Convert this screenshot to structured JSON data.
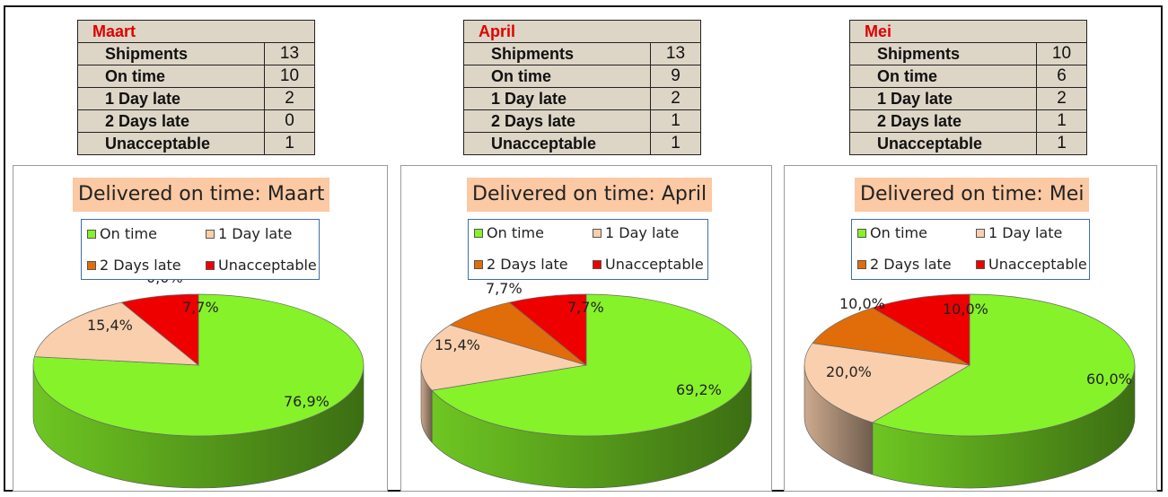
{
  "colors": {
    "on_time": "#86f22a",
    "day1_late": "#f9cfad",
    "days2_late": "#e06d0a",
    "unacceptable": "#ee0000",
    "table_bg": "#ddd5c6",
    "title_bg": "#fbc9a3",
    "month_title": "#e00000"
  },
  "legend": [
    "On time",
    "1 Day late",
    "2 Days late",
    "Unacceptable"
  ],
  "months": [
    {
      "name": "Maart",
      "rows": [
        {
          "label": "Shipments",
          "value": "13"
        },
        {
          "label": "On time",
          "value": "10"
        },
        {
          "label": "1 Day late",
          "value": "2"
        },
        {
          "label": "2 Days late",
          "value": "0"
        },
        {
          "label": "Unacceptable",
          "value": "1"
        }
      ],
      "chart_title": "Delivered on time: Maart"
    },
    {
      "name": "April",
      "rows": [
        {
          "label": "Shipments",
          "value": "13"
        },
        {
          "label": "On time",
          "value": "9"
        },
        {
          "label": "1 Day late",
          "value": "2"
        },
        {
          "label": "2 Days late",
          "value": "1"
        },
        {
          "label": "Unacceptable",
          "value": "1"
        }
      ],
      "chart_title": "Delivered on time: April"
    },
    {
      "name": "Mei",
      "rows": [
        {
          "label": "Shipments",
          "value": "10"
        },
        {
          "label": "On time",
          "value": "6"
        },
        {
          "label": "1 Day late",
          "value": "2"
        },
        {
          "label": "2 Days late",
          "value": "1"
        },
        {
          "label": "Unacceptable",
          "value": "1"
        }
      ],
      "chart_title": "Delivered on time: Mei"
    }
  ],
  "chart_data": [
    {
      "type": "pie",
      "title": "Delivered on time: Maart",
      "categories": [
        "On time",
        "1 Day late",
        "2 Days late",
        "Unacceptable"
      ],
      "values": [
        76.9,
        15.4,
        0.0,
        7.7
      ],
      "labels": [
        "76,9%",
        "15,4%",
        "0,0%",
        "7,7%"
      ],
      "legend_position": "top"
    },
    {
      "type": "pie",
      "title": "Delivered on time: April",
      "categories": [
        "On time",
        "1 Day late",
        "2 Days late",
        "Unacceptable"
      ],
      "values": [
        69.2,
        15.4,
        7.7,
        7.7
      ],
      "labels": [
        "69,2%",
        "15,4%",
        "7,7%",
        "7,7%"
      ],
      "legend_position": "top"
    },
    {
      "type": "pie",
      "title": "Delivered on time: Mei",
      "categories": [
        "On time",
        "1 Day late",
        "2 Days late",
        "Unacceptable"
      ],
      "values": [
        60.0,
        20.0,
        10.0,
        10.0
      ],
      "labels": [
        "60,0%",
        "20,0%",
        "10,0%",
        "10,0%"
      ],
      "legend_position": "top"
    }
  ]
}
